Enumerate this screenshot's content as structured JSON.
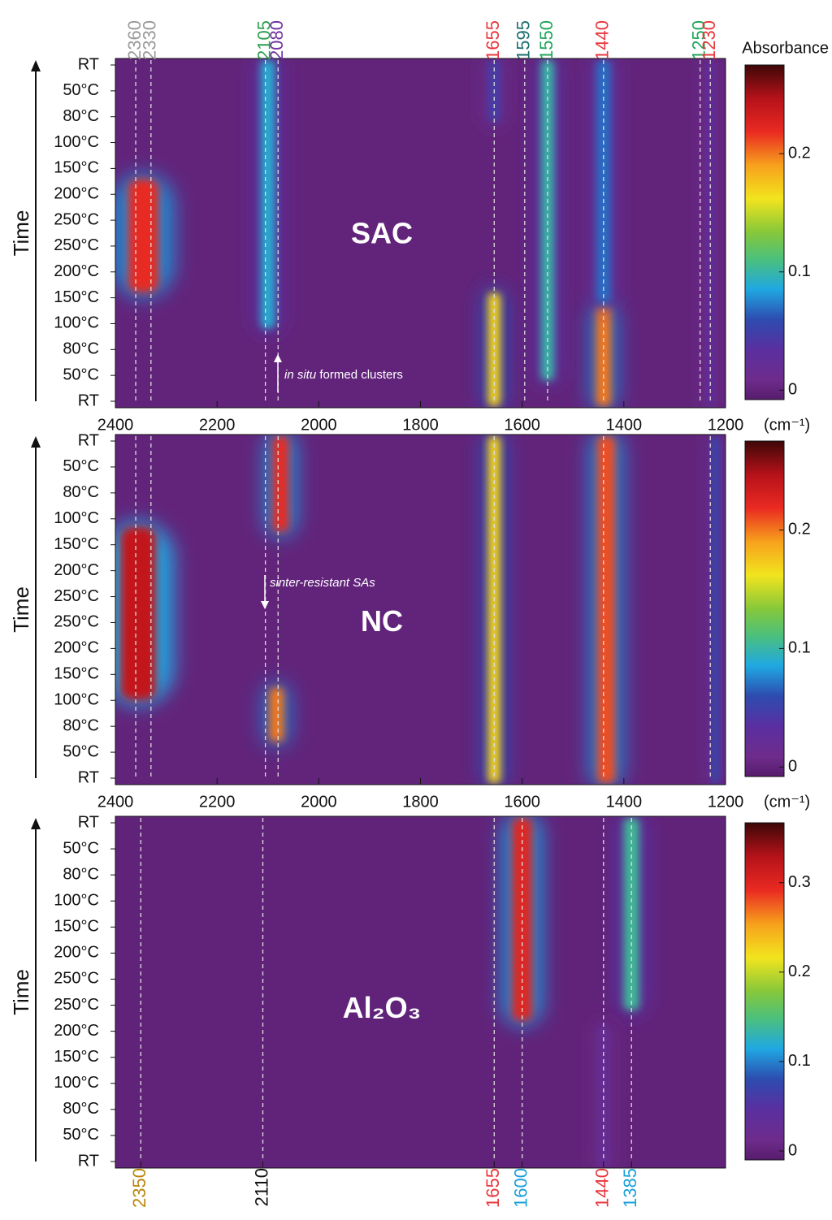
{
  "chart_data": [
    {
      "type": "heatmap",
      "panel_label": "SAC",
      "y_label": "Time",
      "x_label": "(cm⁻¹)",
      "categories": [
        "RT",
        "50°C",
        "80°C",
        "100°C",
        "150°C",
        "200°C",
        "250°C",
        "250°C",
        "200°C",
        "150°C",
        "100°C",
        "80°C",
        "50°C",
        "RT"
      ],
      "xlim": [
        2400,
        1200
      ],
      "xticks": [
        2400,
        2200,
        2000,
        1800,
        1600,
        1400,
        1200
      ],
      "clim": [
        -0.008,
        0.275
      ],
      "cticks": [
        0,
        0.1,
        0.2
      ],
      "colorbar_label": "Absorbance",
      "peaks": [
        {
          "value": 2360,
          "color": "#9a9a9a"
        },
        {
          "value": 2330,
          "color": "#9a9a9a"
        },
        {
          "value": 2105,
          "color": "#2e9e4f"
        },
        {
          "value": 2080,
          "color": "#7030a0"
        },
        {
          "value": 1655,
          "color": "#e8383d"
        },
        {
          "value": 1595,
          "color": "#1f6e6e"
        },
        {
          "value": 1550,
          "color": "#1fa65a"
        },
        {
          "value": 1440,
          "color": "#e8383d"
        },
        {
          "value": 1250,
          "color": "#1fa65a"
        },
        {
          "value": 1230,
          "color": "#e8383d"
        }
      ],
      "annotation": {
        "italic": "in situ",
        "text": "formed clusters"
      },
      "bands": [
        {
          "x": 2345,
          "width": 60,
          "rows": [
            4.6,
            8.6
          ],
          "value": 0.22
        },
        {
          "x": 2100,
          "width": 28,
          "rows": [
            0,
            10
          ],
          "value": 0.09
        },
        {
          "x": 1655,
          "width": 25,
          "rows": [
            9,
            13
          ],
          "value": 0.17
        },
        {
          "x": 1655,
          "width": 20,
          "rows": [
            0,
            2
          ],
          "value": 0.05
        },
        {
          "x": 1550,
          "width": 25,
          "rows": [
            0,
            12
          ],
          "value": 0.1
        },
        {
          "x": 1440,
          "width": 30,
          "rows": [
            9.5,
            13
          ],
          "value": 0.2
        },
        {
          "x": 1440,
          "width": 28,
          "rows": [
            0,
            9
          ],
          "value": 0.07
        },
        {
          "x": 1230,
          "width": 14,
          "rows": [
            0,
            13
          ],
          "value": 0.03
        }
      ]
    },
    {
      "type": "heatmap",
      "panel_label": "NC",
      "y_label": "Time",
      "x_label": "(cm⁻¹)",
      "categories": [
        "RT",
        "50°C",
        "80°C",
        "100°C",
        "150°C",
        "200°C",
        "250°C",
        "250°C",
        "200°C",
        "150°C",
        "100°C",
        "80°C",
        "50°C",
        "RT"
      ],
      "xlim": [
        2400,
        1200
      ],
      "xticks": [
        2400,
        2200,
        2000,
        1800,
        1600,
        1400,
        1200
      ],
      "clim": [
        -0.008,
        0.275
      ],
      "cticks": [
        0,
        0.1,
        0.2
      ],
      "peak_lines": [
        2360,
        2330,
        2105,
        2080,
        1655,
        1440,
        1230
      ],
      "annotation": {
        "italic": "sinter-resistant SAs"
      },
      "bands": [
        {
          "x": 2355,
          "width": 70,
          "rows": [
            3.5,
            9.8
          ],
          "value": 0.24
        },
        {
          "x": 2075,
          "width": 32,
          "rows": [
            0,
            3.3
          ],
          "value": 0.22
        },
        {
          "x": 2083,
          "width": 28,
          "rows": [
            9.7,
            11.4
          ],
          "value": 0.2
        },
        {
          "x": 1655,
          "width": 25,
          "rows": [
            0,
            13
          ],
          "value": 0.17
        },
        {
          "x": 1435,
          "width": 35,
          "rows": [
            0,
            13
          ],
          "value": 0.21
        },
        {
          "x": 1220,
          "width": 14,
          "rows": [
            0,
            13
          ],
          "value": 0.06
        }
      ]
    },
    {
      "type": "heatmap",
      "panel_label": "Al₂O₃",
      "y_label": "Time",
      "categories": [
        "RT",
        "50°C",
        "80°C",
        "100°C",
        "150°C",
        "200°C",
        "250°C",
        "250°C",
        "200°C",
        "150°C",
        "100°C",
        "80°C",
        "50°C",
        "RT"
      ],
      "xlim": [
        2400,
        1200
      ],
      "clim": [
        -0.01,
        0.367
      ],
      "cticks": [
        0,
        0.1,
        0.2,
        0.3
      ],
      "peaks": [
        {
          "value": 2350,
          "color": "#b8860b"
        },
        {
          "value": 2110,
          "color": "#111111"
        },
        {
          "value": 1655,
          "color": "#e8383d"
        },
        {
          "value": 1600,
          "color": "#1aa0d8"
        },
        {
          "value": 1440,
          "color": "#e8383d"
        },
        {
          "value": 1385,
          "color": "#1aa0d8"
        }
      ],
      "bands": [
        {
          "x": 1600,
          "width": 40,
          "rows": [
            0,
            7.4
          ],
          "value": 0.3
        },
        {
          "x": 1385,
          "width": 30,
          "rows": [
            0,
            7
          ],
          "value": 0.14
        },
        {
          "x": 1440,
          "width": 20,
          "rows": [
            8,
            13
          ],
          "value": 0.03
        }
      ]
    }
  ]
}
